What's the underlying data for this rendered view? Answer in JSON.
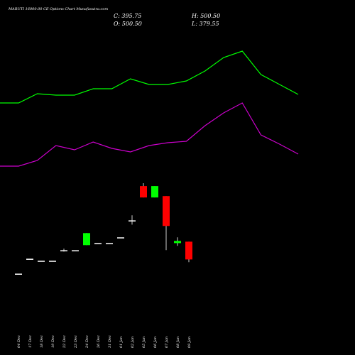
{
  "chart_data": [
    {
      "type": "candlestick",
      "title": "MARUTI 16000.00 CE Options Chart Munafasutra.com",
      "ohlc_labels": {
        "close": "C: 395.75",
        "high": "H: 500.50",
        "open": "O: 500.50",
        "low": "L: 379.55"
      },
      "categories": [
        "04 Dec",
        "17 Dec",
        "18 Dec",
        "19 Dec",
        "22 Dec",
        "23 Dec",
        "24 Dec",
        "26 Dec",
        "31 Dec",
        "01 Jan",
        "02 Jan",
        "05 Jan",
        "06 Jan",
        "07 Jan",
        "08 Jan",
        "09 Jan"
      ],
      "open": [
        312,
        400,
        388,
        388,
        450,
        450,
        480,
        492,
        492,
        526,
        626,
        828,
        761,
        769,
        492,
        500.5
      ],
      "high": [
        312,
        400,
        388,
        388,
        459,
        450,
        551,
        492,
        492,
        526,
        656,
        845,
        828,
        769,
        526,
        500.5
      ],
      "low": [
        312,
        400,
        388,
        388,
        442,
        450,
        480,
        492,
        492,
        526,
        601,
        761,
        761,
        451,
        476,
        379.55
      ],
      "close": [
        312,
        400,
        388,
        388,
        450,
        450,
        551,
        492,
        492,
        526,
        626,
        761,
        828,
        593,
        505,
        395.75
      ],
      "up_color": "#00ff00",
      "down_color": "#ff0000",
      "flat_color": "#ffffff",
      "ylim": [
        0,
        1000
      ]
    },
    {
      "type": "line",
      "x": [
        0,
        1,
        2,
        3,
        4,
        5,
        6,
        7,
        8,
        9,
        10,
        11,
        12,
        13,
        14,
        15,
        16
      ],
      "xlim": [
        0,
        16
      ],
      "ylim": [
        0,
        500
      ],
      "series": [
        {
          "color": "#00ff00",
          "values": [
            355,
            355,
            368,
            366,
            366,
            375,
            375,
            389,
            381,
            381,
            386,
            400,
            419,
            428,
            395,
            381,
            367
          ]
        },
        {
          "color": "#cc00cc",
          "values": [
            266,
            266,
            274,
            295,
            289,
            300,
            291,
            286,
            295,
            299,
            301,
            323,
            341,
            355,
            310,
            297,
            283
          ]
        }
      ]
    }
  ]
}
